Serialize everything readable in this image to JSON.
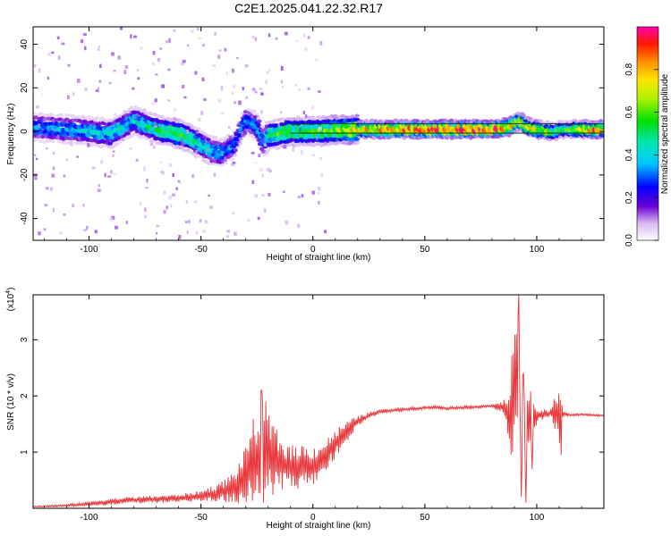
{
  "figure": {
    "title": "C2E1.2025.041.22.32.R17"
  },
  "chart_data": [
    {
      "type": "heatmap",
      "xlabel": "Height of straight line (km)",
      "ylabel": "Frequency (Hz)",
      "xlim": [
        -125,
        130
      ],
      "ylim": [
        -50,
        48
      ],
      "xticks": [
        "-100",
        "-50",
        "0",
        "50",
        "100"
      ],
      "xtick_values": [
        -100,
        -50,
        0,
        50,
        100
      ],
      "yticks": [
        "40",
        "20",
        "0",
        "-20",
        "-40"
      ],
      "ytick_values": [
        40,
        20,
        0,
        -20,
        -40
      ],
      "colorbar": {
        "label": "Normalized spectral amplitude",
        "range": [
          0,
          1
        ],
        "ticks": [
          "0.0",
          "0.2",
          "0.4",
          "0.6",
          "0.8"
        ],
        "tick_values": [
          0.0,
          0.2,
          0.4,
          0.6,
          0.8
        ]
      },
      "ridge": {
        "x": [
          -125,
          -110,
          -100,
          -90,
          -80,
          -75,
          -70,
          -60,
          -55,
          -50,
          -45,
          -40,
          -35,
          -30,
          -25,
          -22,
          -20,
          -10,
          0,
          20,
          40,
          60,
          80,
          88,
          92,
          96,
          100,
          108,
          112,
          130
        ],
        "frequency": [
          2,
          1,
          0,
          -1,
          5,
          3,
          1,
          -1,
          -3,
          -6,
          -9,
          -10,
          -6,
          5,
          2,
          -5,
          -2,
          0,
          0,
          1,
          1,
          1,
          1,
          2,
          5,
          2,
          1,
          0,
          1,
          1
        ],
        "amplitude": [
          0.35,
          0.35,
          0.4,
          0.45,
          0.4,
          0.45,
          0.5,
          0.6,
          0.5,
          0.45,
          0.4,
          0.35,
          0.3,
          0.3,
          0.35,
          0.35,
          0.5,
          0.6,
          0.55,
          0.75,
          0.85,
          0.88,
          0.9,
          0.85,
          0.7,
          0.7,
          0.75,
          0.6,
          0.5,
          0.9
        ]
      }
    },
    {
      "type": "line",
      "xlabel": "Height of straight line (km)",
      "ylabel": "SNR (10 * v/v)",
      "yscale_label": "(x10",
      "yscale_exponent": "4",
      "xlim": [
        -125,
        130
      ],
      "ylim": [
        0,
        3.8
      ],
      "xticks": [
        "-100",
        "-50",
        "0",
        "50",
        "100"
      ],
      "xtick_values": [
        -100,
        -50,
        0,
        50,
        100
      ],
      "yticks": [
        "1",
        "2",
        "3"
      ],
      "ytick_values": [
        1,
        2,
        3
      ],
      "series": [
        {
          "color": "#e8363a",
          "x": [
            -125,
            -110,
            -100,
            -90,
            -80,
            -70,
            -60,
            -55,
            -50,
            -45,
            -40,
            -35,
            -30,
            -28,
            -25,
            -22,
            -20,
            -15,
            -10,
            -5,
            0,
            5,
            10,
            15,
            20,
            25,
            30,
            40,
            50,
            55,
            60,
            70,
            80,
            85,
            88,
            90,
            92,
            94,
            96,
            98,
            100,
            103,
            106,
            108,
            110,
            112,
            115,
            120,
            130
          ],
          "y": [
            0.03,
            0.05,
            0.08,
            0.12,
            0.15,
            0.16,
            0.18,
            0.2,
            0.22,
            0.25,
            0.3,
            0.38,
            0.6,
            0.8,
            0.9,
            1.0,
            0.95,
            0.8,
            0.72,
            0.75,
            0.75,
            0.9,
            1.15,
            1.35,
            1.55,
            1.65,
            1.72,
            1.76,
            1.79,
            1.8,
            1.78,
            1.8,
            1.82,
            1.8,
            1.6,
            2.2,
            2.0,
            1.4,
            1.6,
            1.5,
            1.65,
            1.67,
            1.68,
            1.7,
            1.7,
            1.68,
            1.66,
            1.67,
            1.65
          ],
          "noise": [
            0.01,
            0.02,
            0.04,
            0.06,
            0.06,
            0.07,
            0.07,
            0.08,
            0.1,
            0.15,
            0.2,
            0.3,
            0.5,
            0.7,
            0.8,
            0.9,
            0.8,
            0.5,
            0.4,
            0.4,
            0.35,
            0.3,
            0.25,
            0.2,
            0.1,
            0.06,
            0.04,
            0.03,
            0.03,
            0.03,
            0.03,
            0.03,
            0.03,
            0.1,
            0.6,
            1.5,
            1.4,
            0.9,
            0.8,
            0.4,
            0.12,
            0.1,
            0.05,
            0.3,
            0.6,
            0.05,
            0.02,
            0.02,
            0.02
          ],
          "peaks": [
            [
              -23,
              2.1
            ],
            [
              -21,
              1.9
            ],
            [
              92,
              3.85
            ],
            [
              91,
              3.1
            ],
            [
              94,
              2.4
            ],
            [
              95,
              0.1
            ],
            [
              93,
              0.2
            ],
            [
              98,
              0.7
            ],
            [
              111,
              2.95
            ],
            [
              111,
              0.95
            ]
          ]
        }
      ]
    }
  ]
}
